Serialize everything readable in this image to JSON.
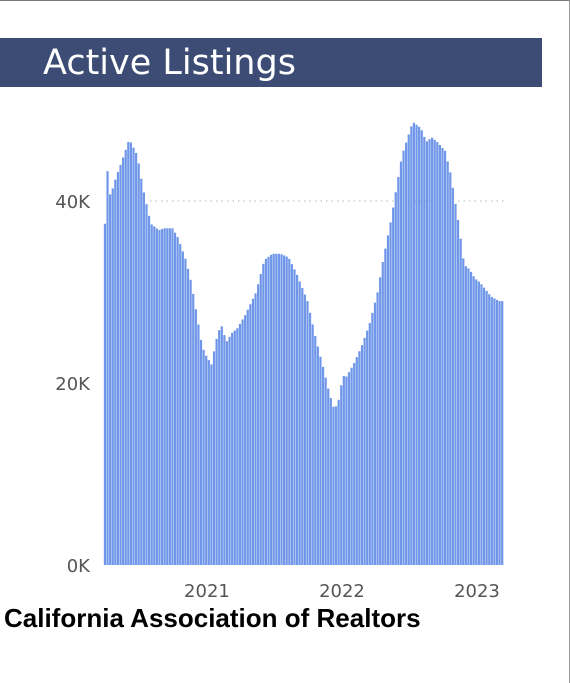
{
  "header": {
    "title": "Active Listings"
  },
  "footer": {
    "source": "California Association of Realtors"
  },
  "colors": {
    "title_bg": "#3c4c74",
    "bar": "#6f96e8",
    "axis_text": "#555555",
    "grid": "#cfcfcf"
  },
  "chart_data": {
    "type": "bar",
    "title": "Active Listings",
    "xlabel": "",
    "ylabel": "",
    "ylim": [
      0,
      50000
    ],
    "yticks": [
      0,
      20000,
      40000
    ],
    "ytick_labels": [
      "0K",
      "20K",
      "40K"
    ],
    "xticks": [
      2021,
      2022,
      2023
    ],
    "xtick_labels": [
      "2021",
      "2022",
      "2023"
    ],
    "xlim": [
      2020.23,
      2023.2
    ],
    "grid": "horizontal dotted at 40K",
    "legend": "none",
    "series": [
      {
        "x": [
          2020.24,
          2020.26,
          2020.28,
          2020.32,
          2020.38,
          2020.42,
          2020.48,
          2020.52,
          2020.58,
          2020.64,
          2020.68,
          2020.74,
          2020.78,
          2020.84,
          2020.88,
          2020.92,
          2020.96,
          2020.99,
          2021.03,
          2021.06,
          2021.1,
          2021.14,
          2021.18,
          2021.22,
          2021.28,
          2021.36,
          2021.42,
          2021.48,
          2021.54,
          2021.6,
          2021.66,
          2021.74,
          2021.8,
          2021.86,
          2021.9,
          2021.94,
          2021.98,
          2022.0,
          2022.02,
          2022.04,
          2022.08,
          2022.14,
          2022.2,
          2022.26,
          2022.3,
          2022.36,
          2022.44,
          2022.52,
          2022.58,
          2022.62,
          2022.66,
          2022.7,
          2022.76,
          2022.8,
          2022.86,
          2022.9,
          2022.94,
          2022.98,
          2023.02,
          2023.1,
          2023.16,
          2023.2
        ],
        "values": [
          37500,
          43500,
          40500,
          42500,
          45000,
          46800,
          45000,
          41500,
          37500,
          36800,
          37000,
          37000,
          36000,
          33500,
          31000,
          27500,
          24000,
          23000,
          22000,
          24500,
          26500,
          24500,
          25500,
          26000,
          27500,
          30000,
          33500,
          34200,
          34200,
          33800,
          32000,
          29000,
          25000,
          21500,
          19000,
          17000,
          18500,
          21000,
          20500,
          21000,
          22000,
          24000,
          26500,
          30000,
          33500,
          38000,
          45000,
          48700,
          48000,
          46500,
          47000,
          46500,
          45500,
          43000,
          37500,
          33000,
          32500,
          31500,
          31000,
          29500,
          29000,
          29000
        ]
      }
    ]
  }
}
